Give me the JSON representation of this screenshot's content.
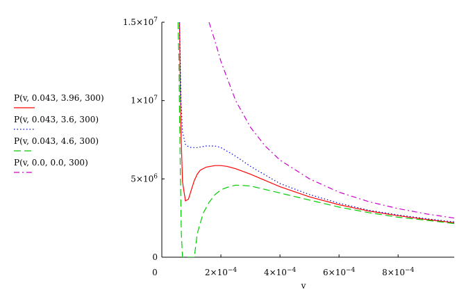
{
  "chart_data": {
    "type": "line",
    "xlabel": "v",
    "ylabel": "",
    "title": "",
    "xlim": [
      0,
      0.00099
    ],
    "ylim": [
      0,
      15000000
    ],
    "x_ticks": [
      {
        "value": 0,
        "label": "0"
      },
      {
        "value": 0.0002,
        "label": "2×10−4",
        "mantissa": "2×10",
        "exp": "−4"
      },
      {
        "value": 0.0004,
        "label": "4×10−4",
        "mantissa": "4×10",
        "exp": "−4"
      },
      {
        "value": 0.0006,
        "label": "6×10−4",
        "mantissa": "6×10",
        "exp": "−4"
      },
      {
        "value": 0.0008,
        "label": "8×10−4",
        "mantissa": "8×10",
        "exp": "−4"
      }
    ],
    "y_ticks": [
      {
        "value": 0,
        "label": "0"
      },
      {
        "value": 5000000,
        "label": "5×106",
        "mantissa": "5×10",
        "exp": "6"
      },
      {
        "value": 10000000,
        "label": "1×107",
        "mantissa": "1×10",
        "exp": "7"
      },
      {
        "value": 15000000,
        "label": "1.5×107",
        "mantissa": "1.5×10",
        "exp": "7"
      }
    ],
    "grid": false,
    "legend_position": "left",
    "series": [
      {
        "name": "P(v, 0.043, 3.96, 300)",
        "color": "#ff0000",
        "dash": "solid",
        "x": [
          6e-05,
          6.25e-05,
          6.5e-05,
          7e-05,
          8e-05,
          9e-05,
          0.0001,
          0.00011,
          0.00012,
          0.00013,
          0.00015,
          0.00018,
          0.0002,
          0.00022,
          0.00025,
          0.0003,
          0.0004,
          0.0005,
          0.0006,
          0.0007,
          0.0008,
          0.0009,
          0.00099
        ],
        "y": [
          15000000,
          11000000,
          8000000,
          4800000,
          3600000,
          3700000,
          4300000,
          4900000,
          5300000,
          5550000,
          5750000,
          5850000,
          5850000,
          5800000,
          5650000,
          5300000,
          4500000,
          3850000,
          3350000,
          2950000,
          2650000,
          2400000,
          2200000
        ]
      },
      {
        "name": "P(v, 0.043, 3.6, 300)",
        "color": "#0000cc",
        "dash": "dot",
        "x": [
          6e-05,
          6.25e-05,
          6.5e-05,
          7e-05,
          8e-05,
          9e-05,
          0.0001,
          0.00012,
          0.00015,
          0.00018,
          0.0002,
          0.00025,
          0.0003,
          0.0004,
          0.0005,
          0.0006,
          0.0007,
          0.0008,
          0.0009,
          0.00099
        ],
        "y": [
          15000000,
          12500000,
          10000000,
          8000000,
          7200000,
          7050000,
          7000000,
          7000000,
          7100000,
          7100000,
          7000000,
          6450000,
          5800000,
          4700000,
          4000000,
          3450000,
          3000000,
          2700000,
          2450000,
          2250000
        ]
      },
      {
        "name": "P(v, 0.043, 4.6, 300)",
        "color": "#00cc00",
        "dash": "dash",
        "x": [
          5.5e-05,
          5.8e-05,
          6e-05,
          6.3e-05,
          6.6e-05,
          7e-05,
          0.0001,
          0.00011,
          0.00012,
          0.00014,
          0.00016,
          0.00018,
          0.0002,
          0.00022,
          0.00025,
          0.0003,
          0.0004,
          0.0005,
          0.0006,
          0.0007,
          0.0008,
          0.0009,
          0.00099
        ],
        "y": [
          15000000,
          12500000,
          9000000,
          5000000,
          1500000,
          0,
          0,
          0,
          1500000,
          2800000,
          3500000,
          4000000,
          4300000,
          4450000,
          4600000,
          4550000,
          4100000,
          3650000,
          3200000,
          2850000,
          2550000,
          2350000,
          2150000
        ]
      },
      {
        "name": "P(v, 0.0, 0.0, 300)",
        "color": "#cc00cc",
        "dash": "dashdot",
        "x": [
          0.00016,
          0.00018,
          0.0002,
          0.00025,
          0.0003,
          0.00035,
          0.0004,
          0.0005,
          0.0006,
          0.0007,
          0.0008,
          0.0009,
          0.00099
        ],
        "y": [
          15000000,
          13800000,
          12500000,
          10000000,
          8300000,
          7100000,
          6200000,
          5000000,
          4150000,
          3550000,
          3100000,
          2750000,
          2500000
        ]
      }
    ]
  }
}
